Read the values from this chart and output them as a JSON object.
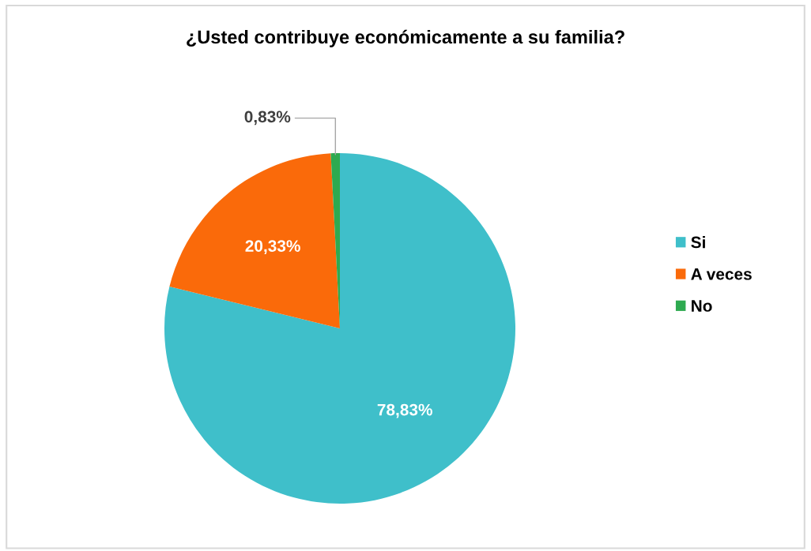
{
  "chart_data": {
    "type": "pie",
    "title": "¿Usted contribuye económicamente a su familia?",
    "categories": [
      "Si",
      "A veces",
      "No"
    ],
    "values": [
      78.83,
      20.33,
      0.83
    ],
    "value_labels": [
      "78,83%",
      "20,33%",
      "0,83%"
    ],
    "colors": [
      "#3fbfca",
      "#fa6a0a",
      "#2eaa50"
    ],
    "legend": "right"
  }
}
